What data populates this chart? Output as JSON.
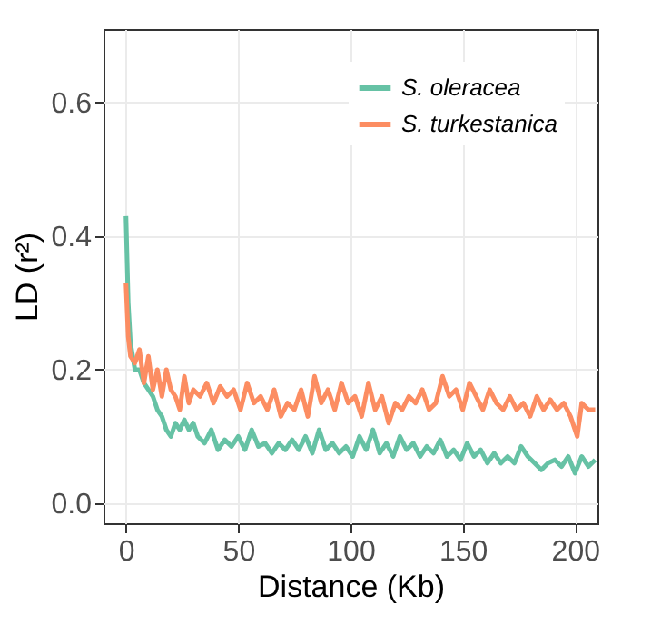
{
  "chart_data": {
    "type": "line",
    "xlabel": "Distance (Kb)",
    "ylabel": "LD (r²)",
    "xlim": [
      -10,
      210
    ],
    "ylim": [
      -0.03,
      0.71
    ],
    "xticks": [
      0,
      50,
      100,
      150,
      200
    ],
    "yticks": [
      {
        "value": 0,
        "label": "0.0"
      },
      0.2,
      0.4,
      0.6
    ],
    "grid": true,
    "legend": "top right",
    "marker": "none",
    "line_style": "solid",
    "series": [
      {
        "name": "S. oleracea",
        "color": "#66c2a5",
        "x": [
          0,
          1,
          2,
          4,
          6,
          8,
          10,
          12,
          14,
          16,
          18,
          20,
          22,
          24,
          26,
          28,
          30,
          32,
          35,
          38,
          41,
          44,
          47,
          50,
          53,
          56,
          59,
          62,
          65,
          68,
          71,
          74,
          77,
          80,
          83,
          86,
          89,
          92,
          95,
          98,
          101,
          104,
          107,
          110,
          113,
          116,
          119,
          122,
          125,
          128,
          131,
          134,
          137,
          140,
          143,
          146,
          149,
          152,
          155,
          158,
          161,
          164,
          167,
          170,
          173,
          176,
          179,
          182,
          185,
          188,
          191,
          194,
          197,
          200,
          203,
          206,
          209
        ],
        "values": [
          0.43,
          0.3,
          0.24,
          0.2,
          0.2,
          0.18,
          0.17,
          0.16,
          0.14,
          0.13,
          0.11,
          0.1,
          0.12,
          0.11,
          0.125,
          0.11,
          0.12,
          0.1,
          0.09,
          0.11,
          0.08,
          0.095,
          0.085,
          0.1,
          0.08,
          0.11,
          0.085,
          0.09,
          0.075,
          0.09,
          0.08,
          0.095,
          0.08,
          0.1,
          0.075,
          0.11,
          0.08,
          0.09,
          0.075,
          0.085,
          0.07,
          0.1,
          0.08,
          0.11,
          0.075,
          0.09,
          0.07,
          0.1,
          0.08,
          0.09,
          0.07,
          0.085,
          0.075,
          0.095,
          0.07,
          0.08,
          0.065,
          0.09,
          0.07,
          0.08,
          0.06,
          0.075,
          0.06,
          0.07,
          0.06,
          0.085,
          0.07,
          0.06,
          0.05,
          0.06,
          0.065,
          0.055,
          0.07,
          0.045,
          0.07,
          0.055,
          0.065
        ]
      },
      {
        "name": "S. turkestanica",
        "color": "#fc8d62",
        "x": [
          0,
          1,
          2,
          4,
          6,
          8,
          10,
          12,
          14,
          16,
          18,
          20,
          22,
          24,
          26,
          28,
          30,
          33,
          36,
          39,
          42,
          45,
          48,
          51,
          54,
          57,
          60,
          63,
          66,
          69,
          72,
          75,
          78,
          81,
          84,
          87,
          90,
          93,
          96,
          99,
          102,
          105,
          108,
          111,
          114,
          117,
          120,
          123,
          126,
          129,
          132,
          135,
          138,
          141,
          144,
          147,
          150,
          153,
          156,
          159,
          162,
          165,
          168,
          171,
          174,
          177,
          180,
          183,
          186,
          189,
          192,
          195,
          198,
          201,
          203,
          206,
          209
        ],
        "values": [
          0.33,
          0.25,
          0.22,
          0.21,
          0.23,
          0.18,
          0.22,
          0.17,
          0.2,
          0.16,
          0.2,
          0.17,
          0.16,
          0.14,
          0.19,
          0.15,
          0.17,
          0.16,
          0.18,
          0.15,
          0.175,
          0.16,
          0.17,
          0.14,
          0.18,
          0.15,
          0.16,
          0.14,
          0.17,
          0.13,
          0.15,
          0.14,
          0.17,
          0.13,
          0.19,
          0.15,
          0.17,
          0.14,
          0.18,
          0.15,
          0.16,
          0.13,
          0.18,
          0.14,
          0.16,
          0.12,
          0.15,
          0.14,
          0.16,
          0.15,
          0.17,
          0.14,
          0.15,
          0.19,
          0.16,
          0.17,
          0.14,
          0.18,
          0.16,
          0.14,
          0.17,
          0.15,
          0.14,
          0.16,
          0.14,
          0.15,
          0.13,
          0.16,
          0.14,
          0.155,
          0.14,
          0.15,
          0.13,
          0.1,
          0.15,
          0.14,
          0.14
        ]
      }
    ]
  }
}
